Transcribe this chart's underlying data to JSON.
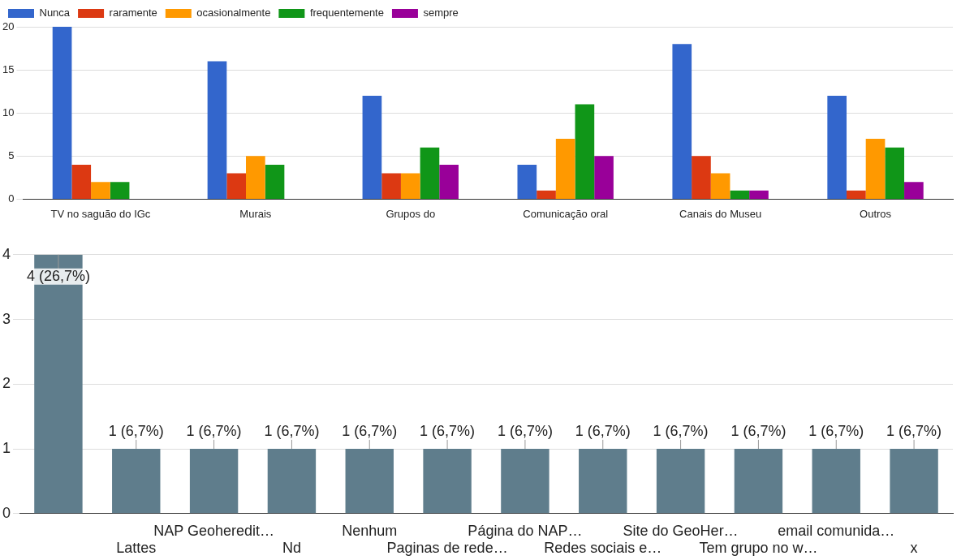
{
  "chart_data": [
    {
      "type": "bar",
      "categories": [
        "TV no saguão do IGc",
        "Murais",
        "Grupos do",
        "Comunicação oral",
        "Canais do Museu",
        "Outros"
      ],
      "series": [
        {
          "name": "Nunca",
          "color": "#3366cc",
          "values": [
            20,
            16,
            12,
            4,
            18,
            12
          ]
        },
        {
          "name": "raramente",
          "color": "#dc3912",
          "values": [
            4,
            3,
            3,
            1,
            5,
            1
          ]
        },
        {
          "name": "ocasionalmente",
          "color": "#ff9900",
          "values": [
            2,
            5,
            3,
            7,
            3,
            7
          ]
        },
        {
          "name": "frequentemente",
          "color": "#109618",
          "values": [
            2,
            4,
            6,
            11,
            1,
            6
          ]
        },
        {
          "name": "sempre",
          "color": "#990099",
          "values": [
            0,
            0,
            4,
            5,
            1,
            2
          ]
        }
      ],
      "ylim": [
        0,
        20
      ],
      "yticks": [
        0,
        5,
        10,
        15,
        20
      ],
      "grid": "y",
      "legend": "top left"
    },
    {
      "type": "bar",
      "categories": [
        null,
        "Lattes",
        "NAP Geoheredit…",
        "Nd",
        "Nenhum",
        "Paginas de rede…",
        "Página do NAP…",
        "Redes sociais e…",
        "Site do GeoHer…",
        "Tem grupo no w…",
        "email comunida…",
        "x"
      ],
      "values": [
        4,
        1,
        1,
        1,
        1,
        1,
        1,
        1,
        1,
        1,
        1,
        1
      ],
      "color": "#5f7d8c",
      "value_labels": [
        "4 (26,7%)",
        "1 (6,7%)",
        "1 (6,7%)",
        "1 (6,7%)",
        "1 (6,7%)",
        "1 (6,7%)",
        "1 (6,7%)",
        "1 (6,7%)",
        "1 (6,7%)",
        "1 (6,7%)",
        "1 (6,7%)",
        "1 (6,7%)"
      ],
      "ylim": [
        0,
        4
      ],
      "yticks": [
        0,
        1,
        2,
        3,
        4
      ],
      "grid": "y"
    }
  ]
}
